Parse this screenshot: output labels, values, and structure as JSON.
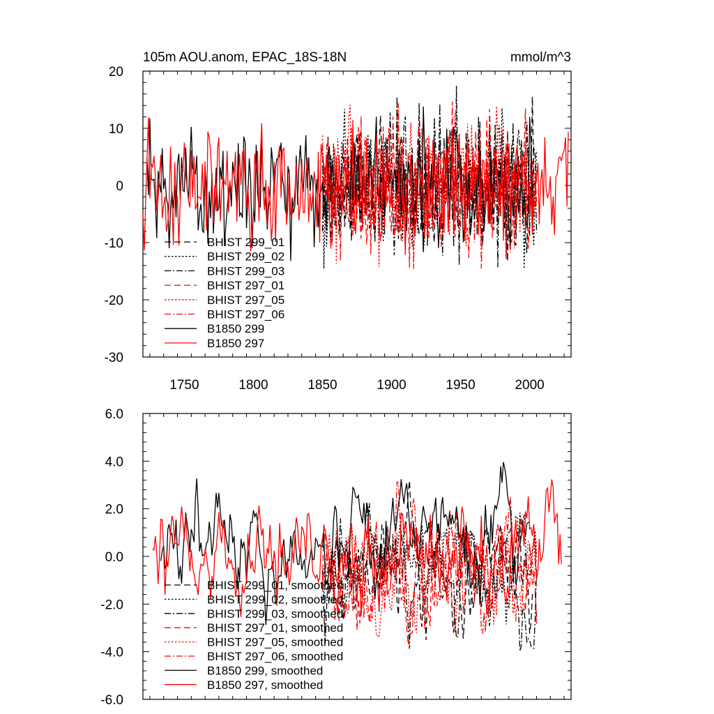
{
  "chart_data": [
    {
      "type": "line",
      "title": "105m AOU.anom, EPAC_18S-18N",
      "units": "mmol/m^3",
      "xlim": [
        1720,
        2030
      ],
      "ylim": [
        -30,
        20
      ],
      "xticks": [
        1750,
        1800,
        1850,
        1900,
        1950,
        2000
      ],
      "xtick_labels": [
        "1750",
        "1800",
        "1850",
        "1900",
        "1950",
        "2000"
      ],
      "yticks": [
        20,
        10,
        0,
        -10,
        -20,
        -30
      ],
      "ytick_labels": [
        "20",
        "10",
        "0",
        "-10",
        "-20",
        "-30"
      ],
      "legend_position": "lower-left",
      "series": [
        {
          "name": "BHIST 299_01",
          "color": "#000000",
          "dash": "long-dash",
          "start": 1850,
          "end": 2005,
          "base": 0,
          "amp": 6.5
        },
        {
          "name": "BHIST 299_02",
          "color": "#000000",
          "dash": "dotted",
          "start": 1850,
          "end": 2005,
          "base": 0,
          "amp": 6.5
        },
        {
          "name": "BHIST 299_03",
          "color": "#000000",
          "dash": "dash-dot",
          "start": 1850,
          "end": 2005,
          "base": 0,
          "amp": 6.5
        },
        {
          "name": "BHIST 297_01",
          "color": "#ff0000",
          "dash": "long-dash",
          "start": 1850,
          "end": 2005,
          "base": 0,
          "amp": 6.5
        },
        {
          "name": "BHIST 297_05",
          "color": "#ff0000",
          "dash": "dotted",
          "start": 1850,
          "end": 2005,
          "base": 0,
          "amp": 6.5
        },
        {
          "name": "BHIST 297_06",
          "color": "#ff0000",
          "dash": "dash-dot",
          "start": 1850,
          "end": 2005,
          "base": 0,
          "amp": 6.5
        },
        {
          "name": "B1850 299",
          "color": "#000000",
          "dash": "solid",
          "start": 1723,
          "end": 2005,
          "base": 0,
          "amp": 5.5
        },
        {
          "name": "B1850 297",
          "color": "#ff0000",
          "dash": "solid",
          "start": 1720,
          "end": 2028,
          "base": 0,
          "amp": 5.5
        }
      ]
    },
    {
      "type": "line",
      "title": "",
      "units": "",
      "xlim": [
        1720,
        2030
      ],
      "ylim": [
        -6,
        6
      ],
      "xticks": [
        1750,
        1800,
        1850,
        1900,
        1950,
        2000
      ],
      "xtick_labels": [],
      "yticks": [
        6,
        4,
        2,
        0,
        -2,
        -4,
        -6
      ],
      "ytick_labels": [
        "6.0",
        "4.0",
        "2.0",
        "0.0",
        "-2.0",
        "-4.0",
        "-6.0"
      ],
      "legend_position": "lower-left",
      "series": [
        {
          "name": "BHIST 299_01, smoothed",
          "color": "#000000",
          "dash": "long-dash",
          "start": 1850,
          "end": 2005,
          "base": -0.5,
          "amp": 1.6
        },
        {
          "name": "BHIST 299_02, smoothed",
          "color": "#000000",
          "dash": "dotted",
          "start": 1850,
          "end": 2005,
          "base": -0.7,
          "amp": 1.6
        },
        {
          "name": "BHIST 299_03, smoothed",
          "color": "#000000",
          "dash": "dash-dot",
          "start": 1850,
          "end": 2005,
          "base": -0.6,
          "amp": 1.6
        },
        {
          "name": "BHIST 297_01, smoothed",
          "color": "#ff0000",
          "dash": "long-dash",
          "start": 1850,
          "end": 2005,
          "base": -0.8,
          "amp": 1.7
        },
        {
          "name": "BHIST 297_05, smoothed",
          "color": "#ff0000",
          "dash": "dotted",
          "start": 1850,
          "end": 2005,
          "base": -1.0,
          "amp": 1.7
        },
        {
          "name": "BHIST 297_06, smoothed",
          "color": "#ff0000",
          "dash": "dash-dot",
          "start": 1850,
          "end": 2005,
          "base": -0.6,
          "amp": 1.7
        },
        {
          "name": "B1850 299, smoothed",
          "color": "#000000",
          "dash": "solid",
          "start": 1733,
          "end": 2000,
          "base": 0.6,
          "amp": 1.5
        },
        {
          "name": "B1850 297, smoothed",
          "color": "#ff0000",
          "dash": "solid",
          "start": 1727,
          "end": 2023,
          "base": 0.0,
          "amp": 1.7
        }
      ]
    }
  ]
}
